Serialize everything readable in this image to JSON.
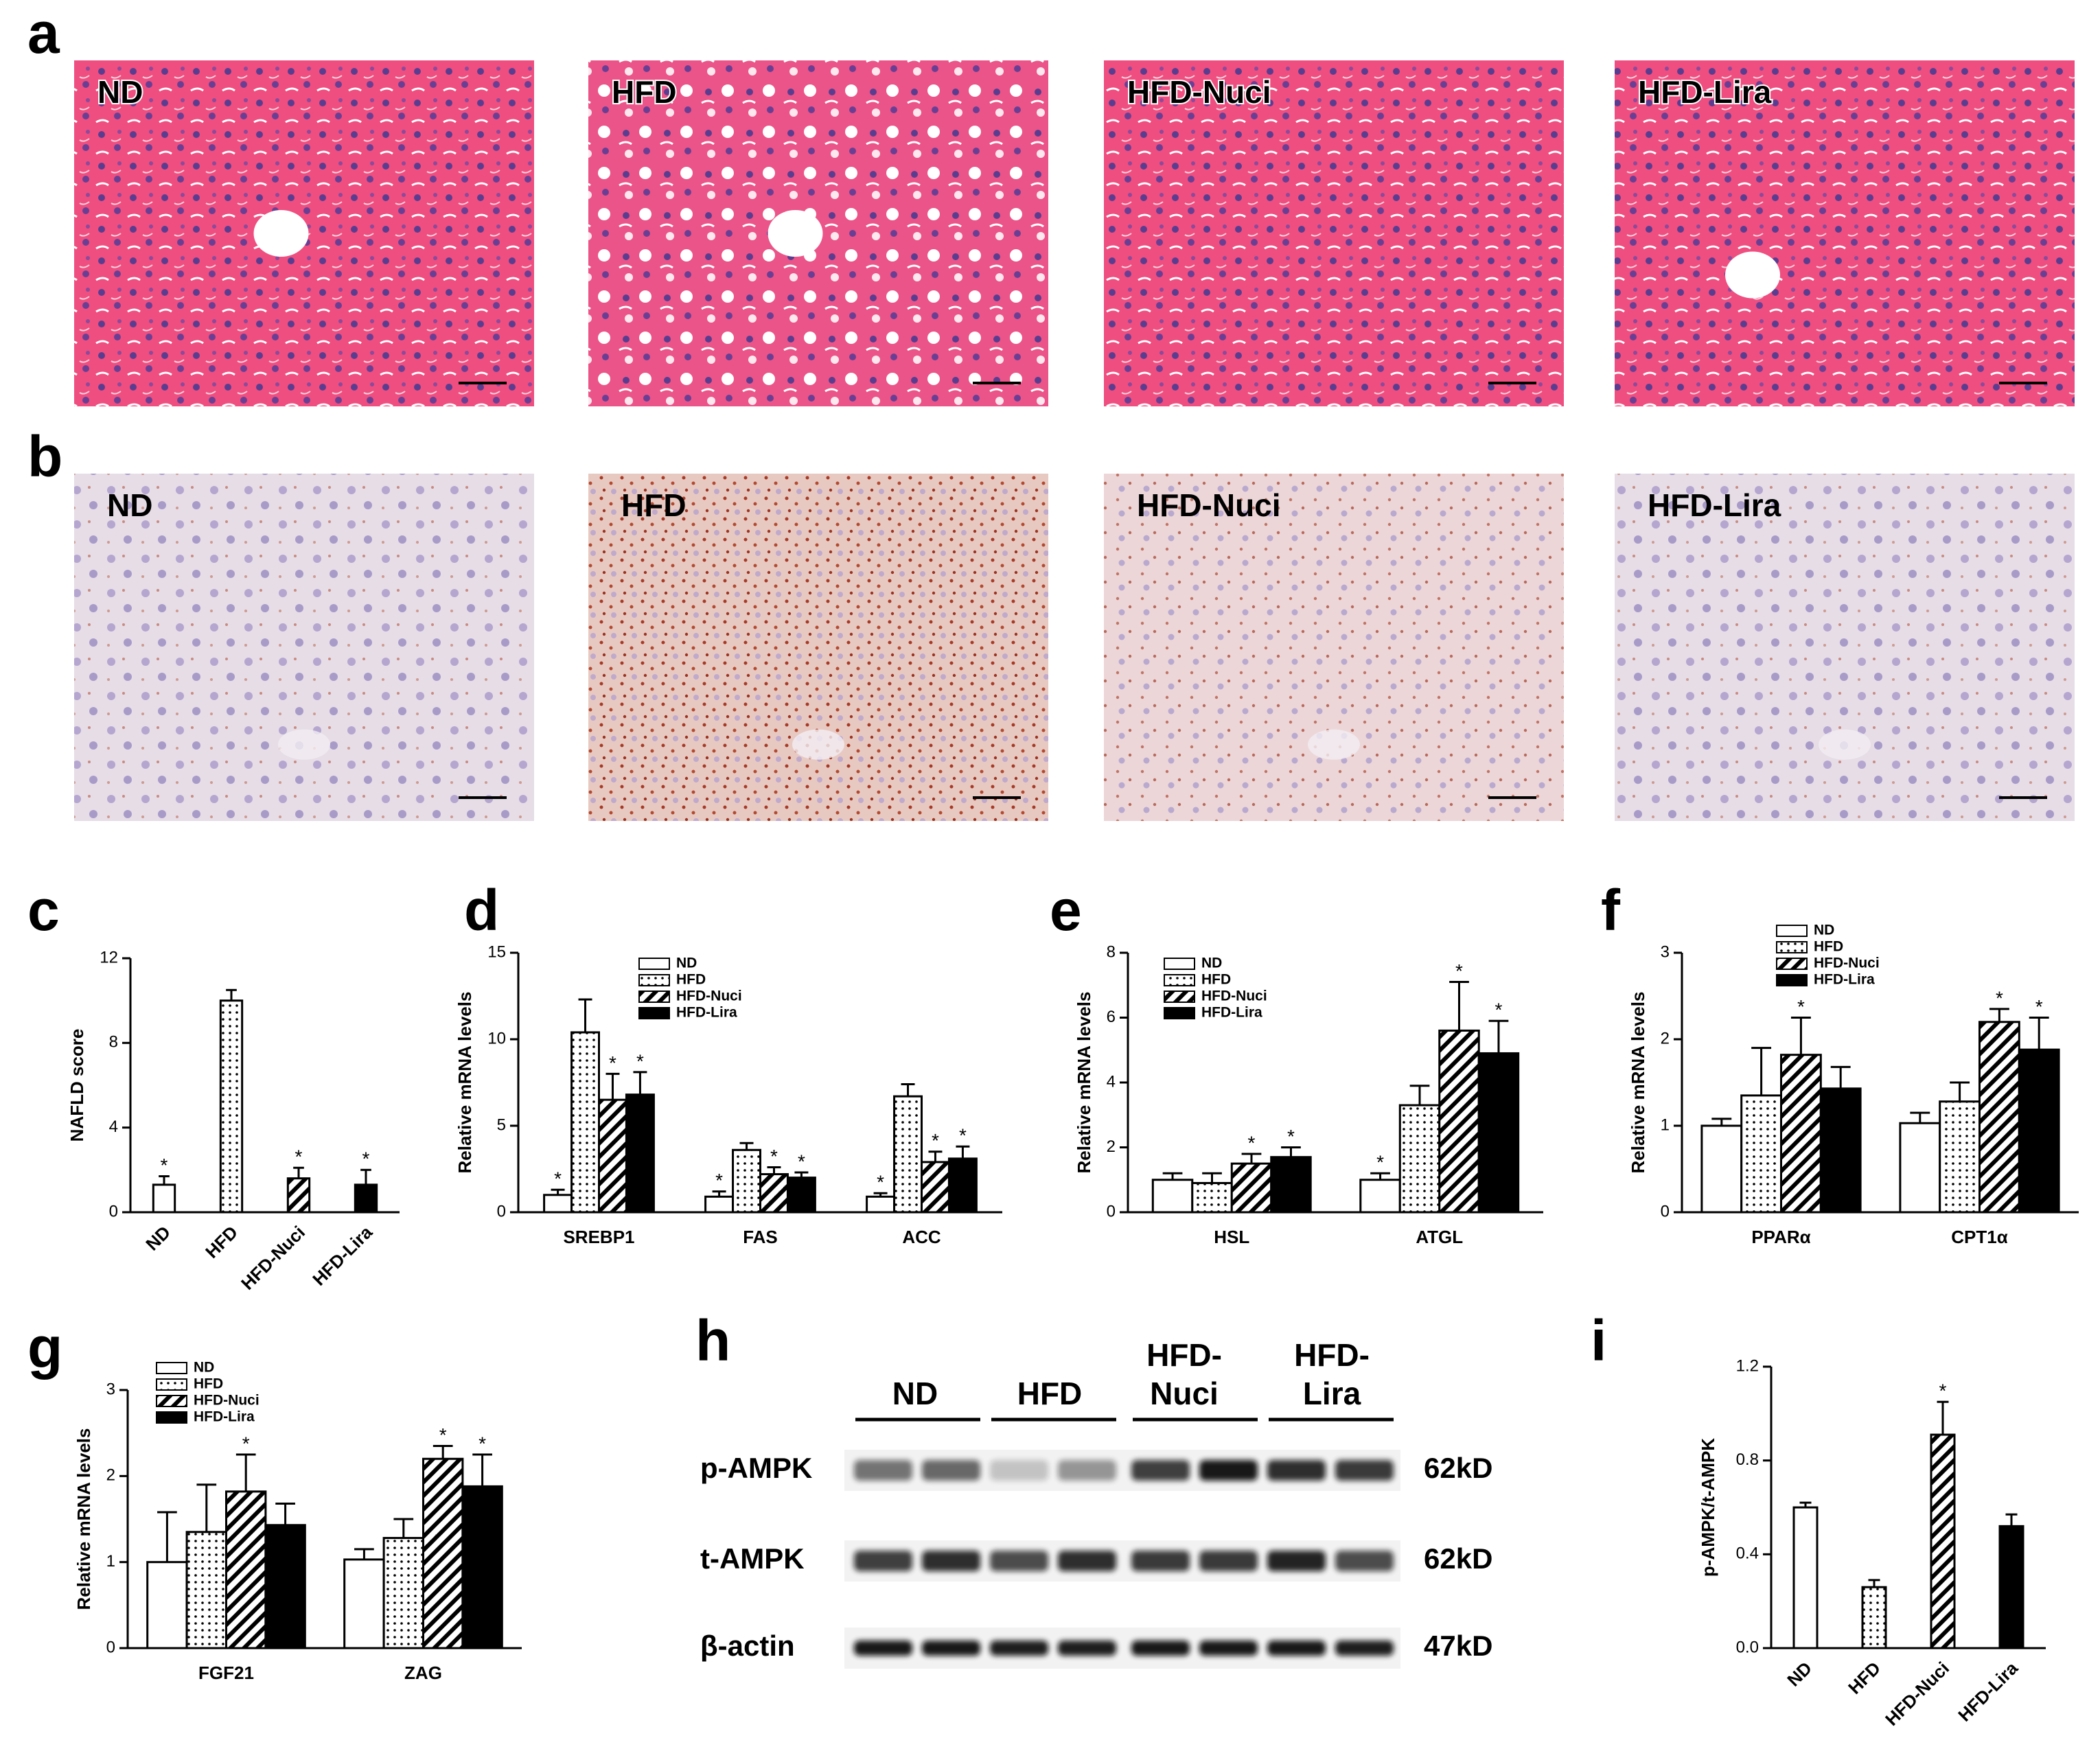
{
  "histology": [
    {
      "panel_label": "a",
      "images": [
        "ND",
        "HFD",
        "HFD-Nuci",
        "HFD-Lira"
      ]
    },
    {
      "panel_label": "b",
      "images": [
        "ND",
        "HFD",
        "HFD-Nuci",
        "HFD-Lira"
      ]
    }
  ],
  "chart_data": [
    {
      "type": "bar",
      "panel_label": "c",
      "ylabel": "NAFLD score",
      "categories": [
        "ND",
        "HFD",
        "HFD-Nuci",
        "HFD-Lira"
      ],
      "values": [
        1.3,
        10,
        1.6,
        1.3
      ],
      "errors": [
        0.4,
        0.5,
        0.5,
        0.7
      ],
      "significance": [
        "*",
        null,
        "*",
        "*"
      ],
      "patterns": [
        "open",
        "dots",
        "hatch",
        "solid"
      ],
      "ylim": [
        0,
        12
      ],
      "yticks": [
        0,
        4,
        8,
        12
      ],
      "rotate_labels": true
    },
    {
      "type": "bar",
      "panel_label": "d",
      "ylabel": "Relative mRNA levels",
      "categories": [
        "SREBP1",
        "FAS",
        "ACC"
      ],
      "series": [
        {
          "name": "ND",
          "pattern": "open",
          "values": [
            1.0,
            0.9,
            0.9
          ],
          "errors": [
            0.3,
            0.3,
            0.2
          ],
          "significance": [
            "*",
            "*",
            "*"
          ]
        },
        {
          "name": "HFD",
          "pattern": "dots",
          "values": [
            10.4,
            3.6,
            6.7
          ],
          "errors": [
            1.9,
            0.4,
            0.7
          ],
          "significance": [
            null,
            null,
            null
          ]
        },
        {
          "name": "HFD-Nuci",
          "pattern": "hatch",
          "values": [
            6.5,
            2.2,
            2.9
          ],
          "errors": [
            1.5,
            0.4,
            0.6
          ],
          "significance": [
            "*",
            "*",
            "*"
          ]
        },
        {
          "name": "HFD-Lira",
          "pattern": "solid",
          "values": [
            6.8,
            2.0,
            3.1
          ],
          "errors": [
            1.3,
            0.3,
            0.7
          ],
          "significance": [
            "*",
            "*",
            "*"
          ]
        }
      ],
      "ylim": [
        0,
        15
      ],
      "yticks": [
        0,
        5,
        10,
        15
      ],
      "legend": "upper center"
    },
    {
      "type": "bar",
      "panel_label": "e",
      "ylabel": "Relative mRNA levels",
      "categories": [
        "HSL",
        "ATGL"
      ],
      "series": [
        {
          "name": "ND",
          "pattern": "open",
          "values": [
            1.0,
            1.0
          ],
          "errors": [
            0.2,
            0.2
          ],
          "significance": [
            null,
            "*"
          ]
        },
        {
          "name": "HFD",
          "pattern": "dots",
          "values": [
            0.9,
            3.3
          ],
          "errors": [
            0.3,
            0.6
          ],
          "significance": [
            null,
            null
          ]
        },
        {
          "name": "HFD-Nuci",
          "pattern": "hatch",
          "values": [
            1.5,
            5.6
          ],
          "errors": [
            0.3,
            1.5
          ],
          "significance": [
            "*",
            "*"
          ]
        },
        {
          "name": "HFD-Lira",
          "pattern": "solid",
          "values": [
            1.7,
            4.9
          ],
          "errors": [
            0.3,
            1.0
          ],
          "significance": [
            "*",
            "*"
          ]
        }
      ],
      "ylim": [
        0,
        8
      ],
      "yticks": [
        0,
        2,
        4,
        6,
        8
      ],
      "legend": "upper left"
    },
    {
      "type": "bar",
      "panel_label": "f",
      "ylabel": "Relative mRNA levels",
      "categories": [
        "PPARα",
        "CPT1α"
      ],
      "series": [
        {
          "name": "ND",
          "pattern": "open",
          "values": [
            1.0,
            1.03
          ],
          "errors": [
            0.08,
            0.12
          ],
          "significance": [
            null,
            null
          ]
        },
        {
          "name": "HFD",
          "pattern": "dots",
          "values": [
            1.35,
            1.28
          ],
          "errors": [
            0.55,
            0.22
          ],
          "significance": [
            null,
            null
          ]
        },
        {
          "name": "HFD-Nuci",
          "pattern": "hatch",
          "values": [
            1.82,
            2.2
          ],
          "errors": [
            0.43,
            0.15
          ],
          "significance": [
            "*",
            "*"
          ]
        },
        {
          "name": "HFD-Lira",
          "pattern": "solid",
          "values": [
            1.43,
            1.88
          ],
          "errors": [
            0.25,
            0.37
          ],
          "significance": [
            null,
            "*"
          ]
        }
      ],
      "ylim": [
        0,
        3
      ],
      "yticks": [
        0,
        1,
        2,
        3
      ],
      "legend": "above"
    },
    {
      "type": "bar",
      "panel_label": "g",
      "ylabel": "Relative mRNA levels",
      "categories": [
        "FGF21",
        "ZAG"
      ],
      "series": [
        {
          "name": "ND",
          "pattern": "open",
          "values": [
            1.0,
            1.03
          ],
          "errors": [
            0.58,
            0.12
          ],
          "significance": [
            null,
            null
          ]
        },
        {
          "name": "HFD",
          "pattern": "dots",
          "values": [
            1.35,
            1.28
          ],
          "errors": [
            0.55,
            0.22
          ],
          "significance": [
            null,
            null
          ]
        },
        {
          "name": "HFD-Nuci",
          "pattern": "hatch",
          "values": [
            1.82,
            2.2
          ],
          "errors": [
            0.43,
            0.15
          ],
          "significance": [
            "*",
            "*"
          ]
        },
        {
          "name": "HFD-Lira",
          "pattern": "solid",
          "values": [
            1.43,
            1.88
          ],
          "errors": [
            0.25,
            0.37
          ],
          "significance": [
            null,
            "*"
          ]
        }
      ],
      "ylim": [
        0,
        3
      ],
      "yticks": [
        0,
        1,
        2,
        3
      ],
      "legend": "above"
    },
    {
      "type": "bar",
      "panel_label": "i",
      "ylabel": "p-AMPK/t-AMPK",
      "categories": [
        "ND",
        "HFD",
        "HFD-Nuci",
        "HFD-Lira"
      ],
      "values": [
        0.6,
        0.26,
        0.91,
        0.52
      ],
      "errors": [
        0.02,
        0.03,
        0.14,
        0.05
      ],
      "significance": [
        null,
        null,
        "*",
        null
      ],
      "patterns": [
        "open",
        "dots",
        "hatch",
        "solid"
      ],
      "ylim": [
        0,
        1.2
      ],
      "yticks": [
        {
          "value": 0,
          "label": "0.0"
        },
        0.4,
        0.8,
        1.2
      ],
      "rotate_labels": true
    }
  ],
  "western_blot": {
    "panel_label": "h",
    "groups": [
      [
        "ND"
      ],
      [
        "HFD"
      ],
      [
        "HFD-",
        "Nuci"
      ],
      [
        "HFD-",
        "Lira"
      ]
    ],
    "rows": [
      {
        "protein": "p-AMPK",
        "size": "62kD"
      },
      {
        "protein": "t-AMPK",
        "size": "62kD"
      },
      {
        "protein": "β-actin",
        "size": "47kD"
      }
    ]
  }
}
